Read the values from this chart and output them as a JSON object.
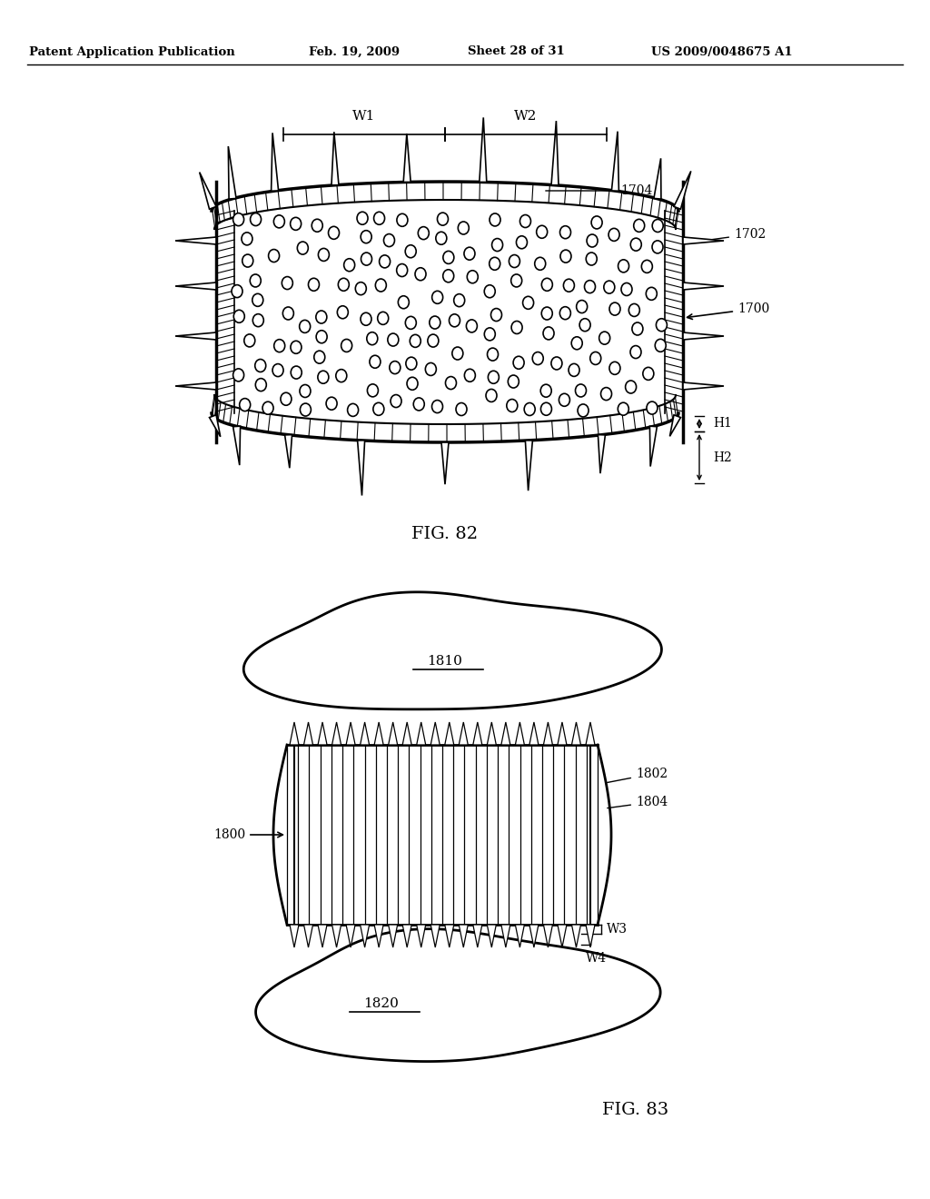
{
  "header_text": "Patent Application Publication",
  "header_date": "Feb. 19, 2009",
  "header_sheet": "Sheet 28 of 31",
  "header_patent": "US 2009/0048675 A1",
  "fig82_label": "FIG. 82",
  "fig83_label": "FIG. 83",
  "label_1700": "1700",
  "label_1702": "1702",
  "label_1704": "1704",
  "label_W1": "W1",
  "label_W2": "W2",
  "label_H1": "H1",
  "label_H2": "H2",
  "label_1800": "1800",
  "label_1802": "1802",
  "label_1804": "1804",
  "label_1810": "1810",
  "label_1820": "1820",
  "label_W3": "W3",
  "label_W4": "W4",
  "bg_color": "#ffffff",
  "line_color": "#000000"
}
